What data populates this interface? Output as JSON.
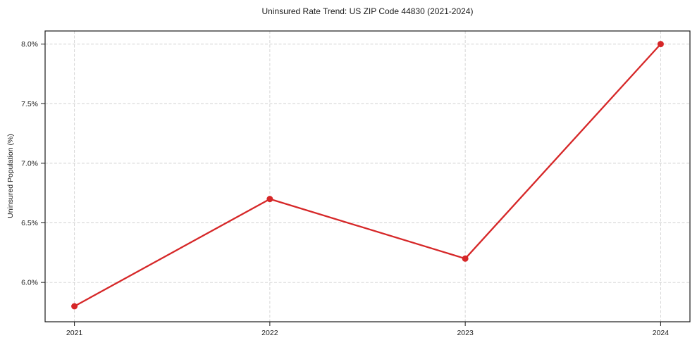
{
  "figure": {
    "title": "Uninsured Rate Trend: US ZIP Code 44830 (2021-2024)",
    "ylabel": "Uninsured Population (%)"
  },
  "chart_data": {
    "type": "line",
    "title": "Uninsured Rate Trend: US ZIP Code 44830 (2021-2024)",
    "xlabel": "",
    "ylabel": "Uninsured Population (%)",
    "x": [
      2021,
      2022,
      2023,
      2024
    ],
    "x_labels": [
      "2021",
      "2022",
      "2023",
      "2024"
    ],
    "values": [
      5.8,
      6.7,
      6.2,
      8.0
    ],
    "yticks": [
      6.0,
      6.5,
      7.0,
      7.5,
      8.0
    ],
    "ytick_labels": [
      "6.0%",
      "6.5%",
      "7.0%",
      "7.5%",
      "8.0%"
    ],
    "xlim": [
      2020.85,
      2024.15
    ],
    "ylim": [
      5.67,
      8.11
    ],
    "grid": true,
    "grid_style": "dashed",
    "legend": false,
    "marker": "circle",
    "colors": {
      "line": "#d62728",
      "marker": "#d62728",
      "grid": "#c9c9c9",
      "spine": "#1a1a1a",
      "text": "#1a1a1a",
      "background": "#ffffff"
    }
  }
}
